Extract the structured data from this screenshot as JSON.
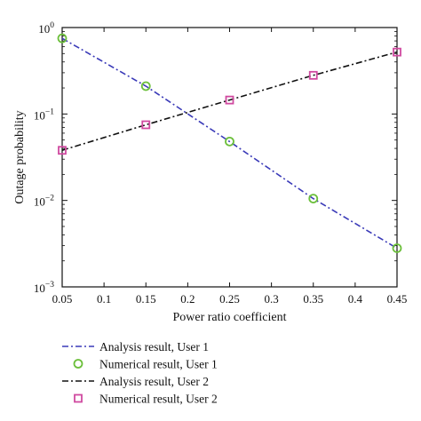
{
  "chart_data": {
    "type": "line",
    "title": "",
    "xlabel": "Power ratio coefficient",
    "ylabel": "Outage probability",
    "xlim": [
      0.05,
      0.45
    ],
    "ylim": [
      0.001,
      1
    ],
    "yscale": "log",
    "x_ticks": [
      "0.05",
      "0.1",
      "0.15",
      "0.2",
      "0.25",
      "0.3",
      "0.35",
      "0.4",
      "0.45"
    ],
    "y_ticks": [
      {
        "value": 1,
        "base": "10",
        "exp": "0"
      },
      {
        "value": 0.1,
        "base": "10",
        "exp": "−1"
      },
      {
        "value": 0.01,
        "base": "10",
        "exp": "−2"
      },
      {
        "value": 0.001,
        "base": "10",
        "exp": "−3"
      }
    ],
    "grid": false,
    "legend_position": "below",
    "series": [
      {
        "name": "Analysis result, User 1",
        "kind": "line",
        "style": "dash-dot",
        "color": "#3a3ab8",
        "x": [
          0.05,
          0.15,
          0.25,
          0.35,
          0.45
        ],
        "y": [
          0.75,
          0.21,
          0.048,
          0.0105,
          0.0028
        ]
      },
      {
        "name": "Numerical result, User 1",
        "kind": "marker",
        "marker": "circle",
        "color": "#6bbf3a",
        "x": [
          0.05,
          0.15,
          0.25,
          0.35,
          0.45
        ],
        "y": [
          0.75,
          0.21,
          0.048,
          0.0105,
          0.0028
        ]
      },
      {
        "name": "Analysis result, User 2",
        "kind": "line",
        "style": "dash-dot",
        "color": "#111111",
        "x": [
          0.05,
          0.15,
          0.25,
          0.35,
          0.45
        ],
        "y": [
          0.038,
          0.075,
          0.145,
          0.28,
          0.52
        ]
      },
      {
        "name": "Numerical result, User 2",
        "kind": "marker",
        "marker": "square",
        "color": "#d04aa0",
        "x": [
          0.05,
          0.15,
          0.25,
          0.35,
          0.45
        ],
        "y": [
          0.038,
          0.075,
          0.145,
          0.28,
          0.52
        ]
      }
    ]
  }
}
